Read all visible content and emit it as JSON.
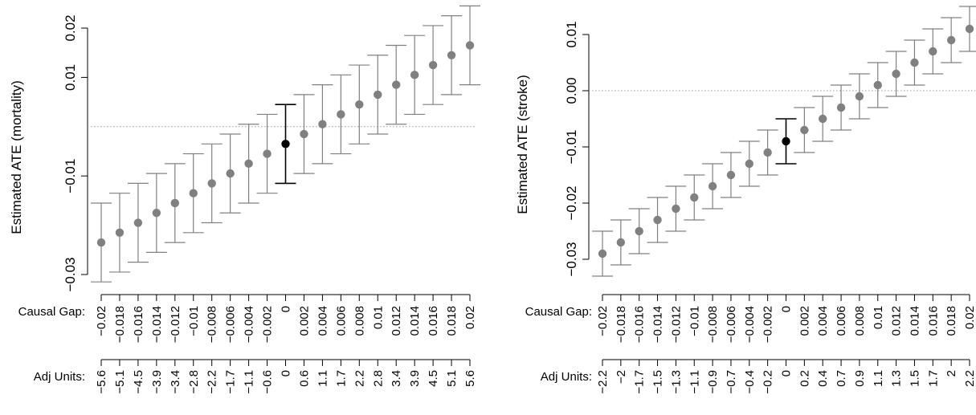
{
  "chart_data": [
    {
      "type": "errorbar",
      "ylabel": "Estimated ATE (mortality)",
      "reference_line": 0,
      "ylim": [
        -0.032,
        0.022
      ],
      "yticks": [
        -0.03,
        -0.01,
        0.01,
        0.02
      ],
      "ytick_labels": [
        "−0.03",
        "−0.01",
        "0.01",
        "0.02"
      ],
      "row_labels": [
        "Causal Gap:",
        "Adj Units:"
      ],
      "causal_gap": [
        "−0.02",
        "−0.018",
        "−0.016",
        "−0.014",
        "−0.012",
        "−0.01",
        "−0.008",
        "−0.006",
        "−0.004",
        "−0.002",
        "0",
        "0.002",
        "0.004",
        "0.006",
        "0.008",
        "0.01",
        "0.012",
        "0.014",
        "0.016",
        "0.018",
        "0.02"
      ],
      "adj_units": [
        "−5.6",
        "−5.1",
        "−4.5",
        "−3.9",
        "−3.4",
        "−2.8",
        "−2.2",
        "−1.7",
        "−1.1",
        "−0.6",
        "0",
        "0.6",
        "1.1",
        "1.7",
        "2.2",
        "2.8",
        "3.4",
        "3.9",
        "4.5",
        "5.1",
        "5.6"
      ],
      "estimates": [
        -0.0235,
        -0.0215,
        -0.0195,
        -0.0175,
        -0.0155,
        -0.0135,
        -0.0115,
        -0.0095,
        -0.0075,
        -0.0055,
        -0.0035,
        -0.0015,
        0.0005,
        0.0025,
        0.0045,
        0.0065,
        0.0085,
        0.0105,
        0.0125,
        0.0145,
        0.0165
      ],
      "lower": [
        -0.0315,
        -0.0295,
        -0.0275,
        -0.0255,
        -0.0235,
        -0.0215,
        -0.0195,
        -0.0175,
        -0.0155,
        -0.0135,
        -0.0115,
        -0.0095,
        -0.0075,
        -0.0055,
        -0.0035,
        -0.0015,
        0.0005,
        0.0025,
        0.0045,
        0.0065,
        0.0085
      ],
      "upper": [
        -0.0155,
        -0.0135,
        -0.0115,
        -0.0095,
        -0.0075,
        -0.0055,
        -0.0035,
        -0.0015,
        0.0005,
        0.0025,
        0.0045,
        0.0065,
        0.0085,
        0.0105,
        0.0125,
        0.0145,
        0.0165,
        0.0185,
        0.0205,
        0.0225,
        0.0245
      ],
      "highlight_index": 10,
      "colors": {
        "points": "#808080",
        "highlight": "#000000",
        "reference": "#999999"
      }
    },
    {
      "type": "errorbar",
      "ylabel": "Estimated ATE (stroke)",
      "reference_line": 0,
      "ylim": [
        -0.034,
        0.016
      ],
      "yticks": [
        -0.03,
        -0.02,
        -0.01,
        0.0,
        0.01
      ],
      "ytick_labels": [
        "−0.03",
        "−0.02",
        "−0.01",
        "0.00",
        "0.01"
      ],
      "row_labels": [
        "Causal Gap:",
        "Adj Units:"
      ],
      "causal_gap": [
        "−0.02",
        "−0.018",
        "−0.016",
        "−0.014",
        "−0.012",
        "−0.01",
        "−0.008",
        "−0.006",
        "−0.004",
        "−0.002",
        "0",
        "0.002",
        "0.004",
        "0.006",
        "0.008",
        "0.01",
        "0.012",
        "0.014",
        "0.016",
        "0.018",
        "0.02"
      ],
      "adj_units": [
        "−2.2",
        "−2",
        "−1.7",
        "−1.5",
        "−1.3",
        "−1.1",
        "−0.9",
        "−0.7",
        "−0.4",
        "−0.2",
        "0",
        "0.2",
        "0.4",
        "0.7",
        "0.9",
        "1.1",
        "1.3",
        "1.5",
        "1.7",
        "2",
        "2.2"
      ],
      "estimates": [
        -0.029,
        -0.027,
        -0.025,
        -0.023,
        -0.021,
        -0.019,
        -0.017,
        -0.015,
        -0.013,
        -0.011,
        -0.009,
        -0.007,
        -0.005,
        -0.003,
        -0.001,
        0.001,
        0.003,
        0.005,
        0.007,
        0.009,
        0.011
      ],
      "lower": [
        -0.033,
        -0.031,
        -0.029,
        -0.027,
        -0.025,
        -0.023,
        -0.021,
        -0.019,
        -0.017,
        -0.015,
        -0.013,
        -0.011,
        -0.009,
        -0.007,
        -0.005,
        -0.003,
        -0.001,
        0.001,
        0.003,
        0.005,
        0.007
      ],
      "upper": [
        -0.025,
        -0.023,
        -0.021,
        -0.019,
        -0.017,
        -0.015,
        -0.013,
        -0.011,
        -0.009,
        -0.007,
        -0.005,
        -0.003,
        -0.001,
        0.001,
        0.003,
        0.005,
        0.007,
        0.009,
        0.011,
        0.013,
        0.015
      ],
      "highlight_index": 10,
      "colors": {
        "points": "#808080",
        "highlight": "#000000",
        "reference": "#999999"
      }
    }
  ]
}
